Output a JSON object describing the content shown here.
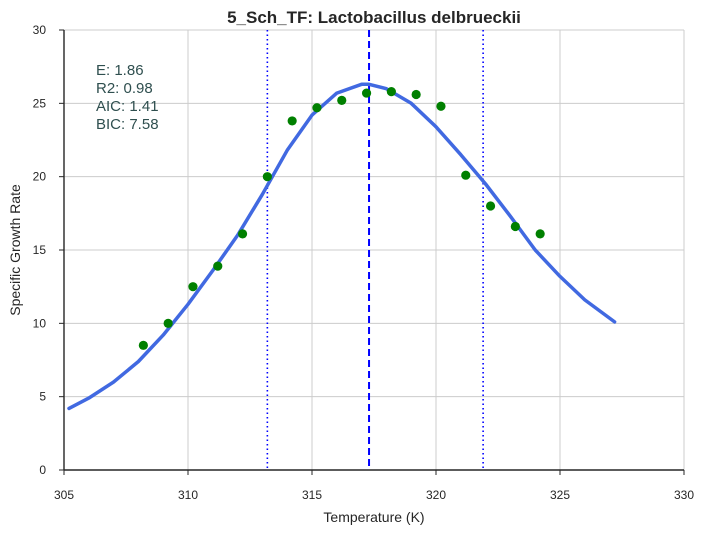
{
  "chart_data": {
    "type": "scatter",
    "title": "5_Sch_TF: Lactobacillus delbrueckii",
    "xlabel": "Temperature (K)",
    "ylabel": "Specific Growth Rate",
    "xlim": [
      305,
      330
    ],
    "ylim": [
      0,
      30
    ],
    "xticks": [
      305,
      310,
      315,
      320,
      325,
      330
    ],
    "yticks": [
      0,
      5,
      10,
      15,
      20,
      25,
      30
    ],
    "grid": true,
    "annotations": [
      {
        "label": "E:",
        "value": "1.86"
      },
      {
        "label": "R2:",
        "value": "0.98"
      },
      {
        "label": "AIC:",
        "value": "1.41"
      },
      {
        "label": "BIC:",
        "value": "7.58"
      }
    ],
    "vertical_lines": [
      {
        "x": 313.2,
        "style": "dotted"
      },
      {
        "x": 317.3,
        "style": "dashed"
      },
      {
        "x": 321.9,
        "style": "dotted"
      }
    ],
    "series": [
      {
        "kind": "points",
        "color": "#008000",
        "x": [
          308.2,
          309.2,
          310.2,
          311.2,
          312.2,
          313.2,
          314.2,
          315.2,
          316.2,
          317.2,
          318.2,
          319.2,
          320.2,
          321.2,
          322.2,
          323.2,
          324.2
        ],
        "y": [
          8.5,
          10.0,
          12.5,
          13.9,
          16.1,
          20.0,
          23.8,
          24.7,
          25.2,
          25.7,
          25.8,
          25.6,
          24.8,
          20.1,
          18.0,
          16.6,
          16.1
        ]
      },
      {
        "kind": "fit-line",
        "color": "#4169e1",
        "x": [
          305.2,
          306,
          307,
          308,
          309,
          310,
          311,
          312,
          313,
          314,
          315,
          316,
          317,
          317.3,
          318,
          319,
          320,
          321,
          322,
          323,
          324,
          325,
          326,
          327.2
        ],
        "y": [
          4.2,
          4.9,
          6.0,
          7.4,
          9.2,
          11.3,
          13.6,
          16.0,
          18.8,
          21.8,
          24.2,
          25.7,
          26.3,
          26.3,
          26.0,
          25.0,
          23.4,
          21.5,
          19.5,
          17.3,
          15.0,
          13.2,
          11.6,
          10.1
        ]
      }
    ],
    "vline_color": "#0000ff"
  }
}
